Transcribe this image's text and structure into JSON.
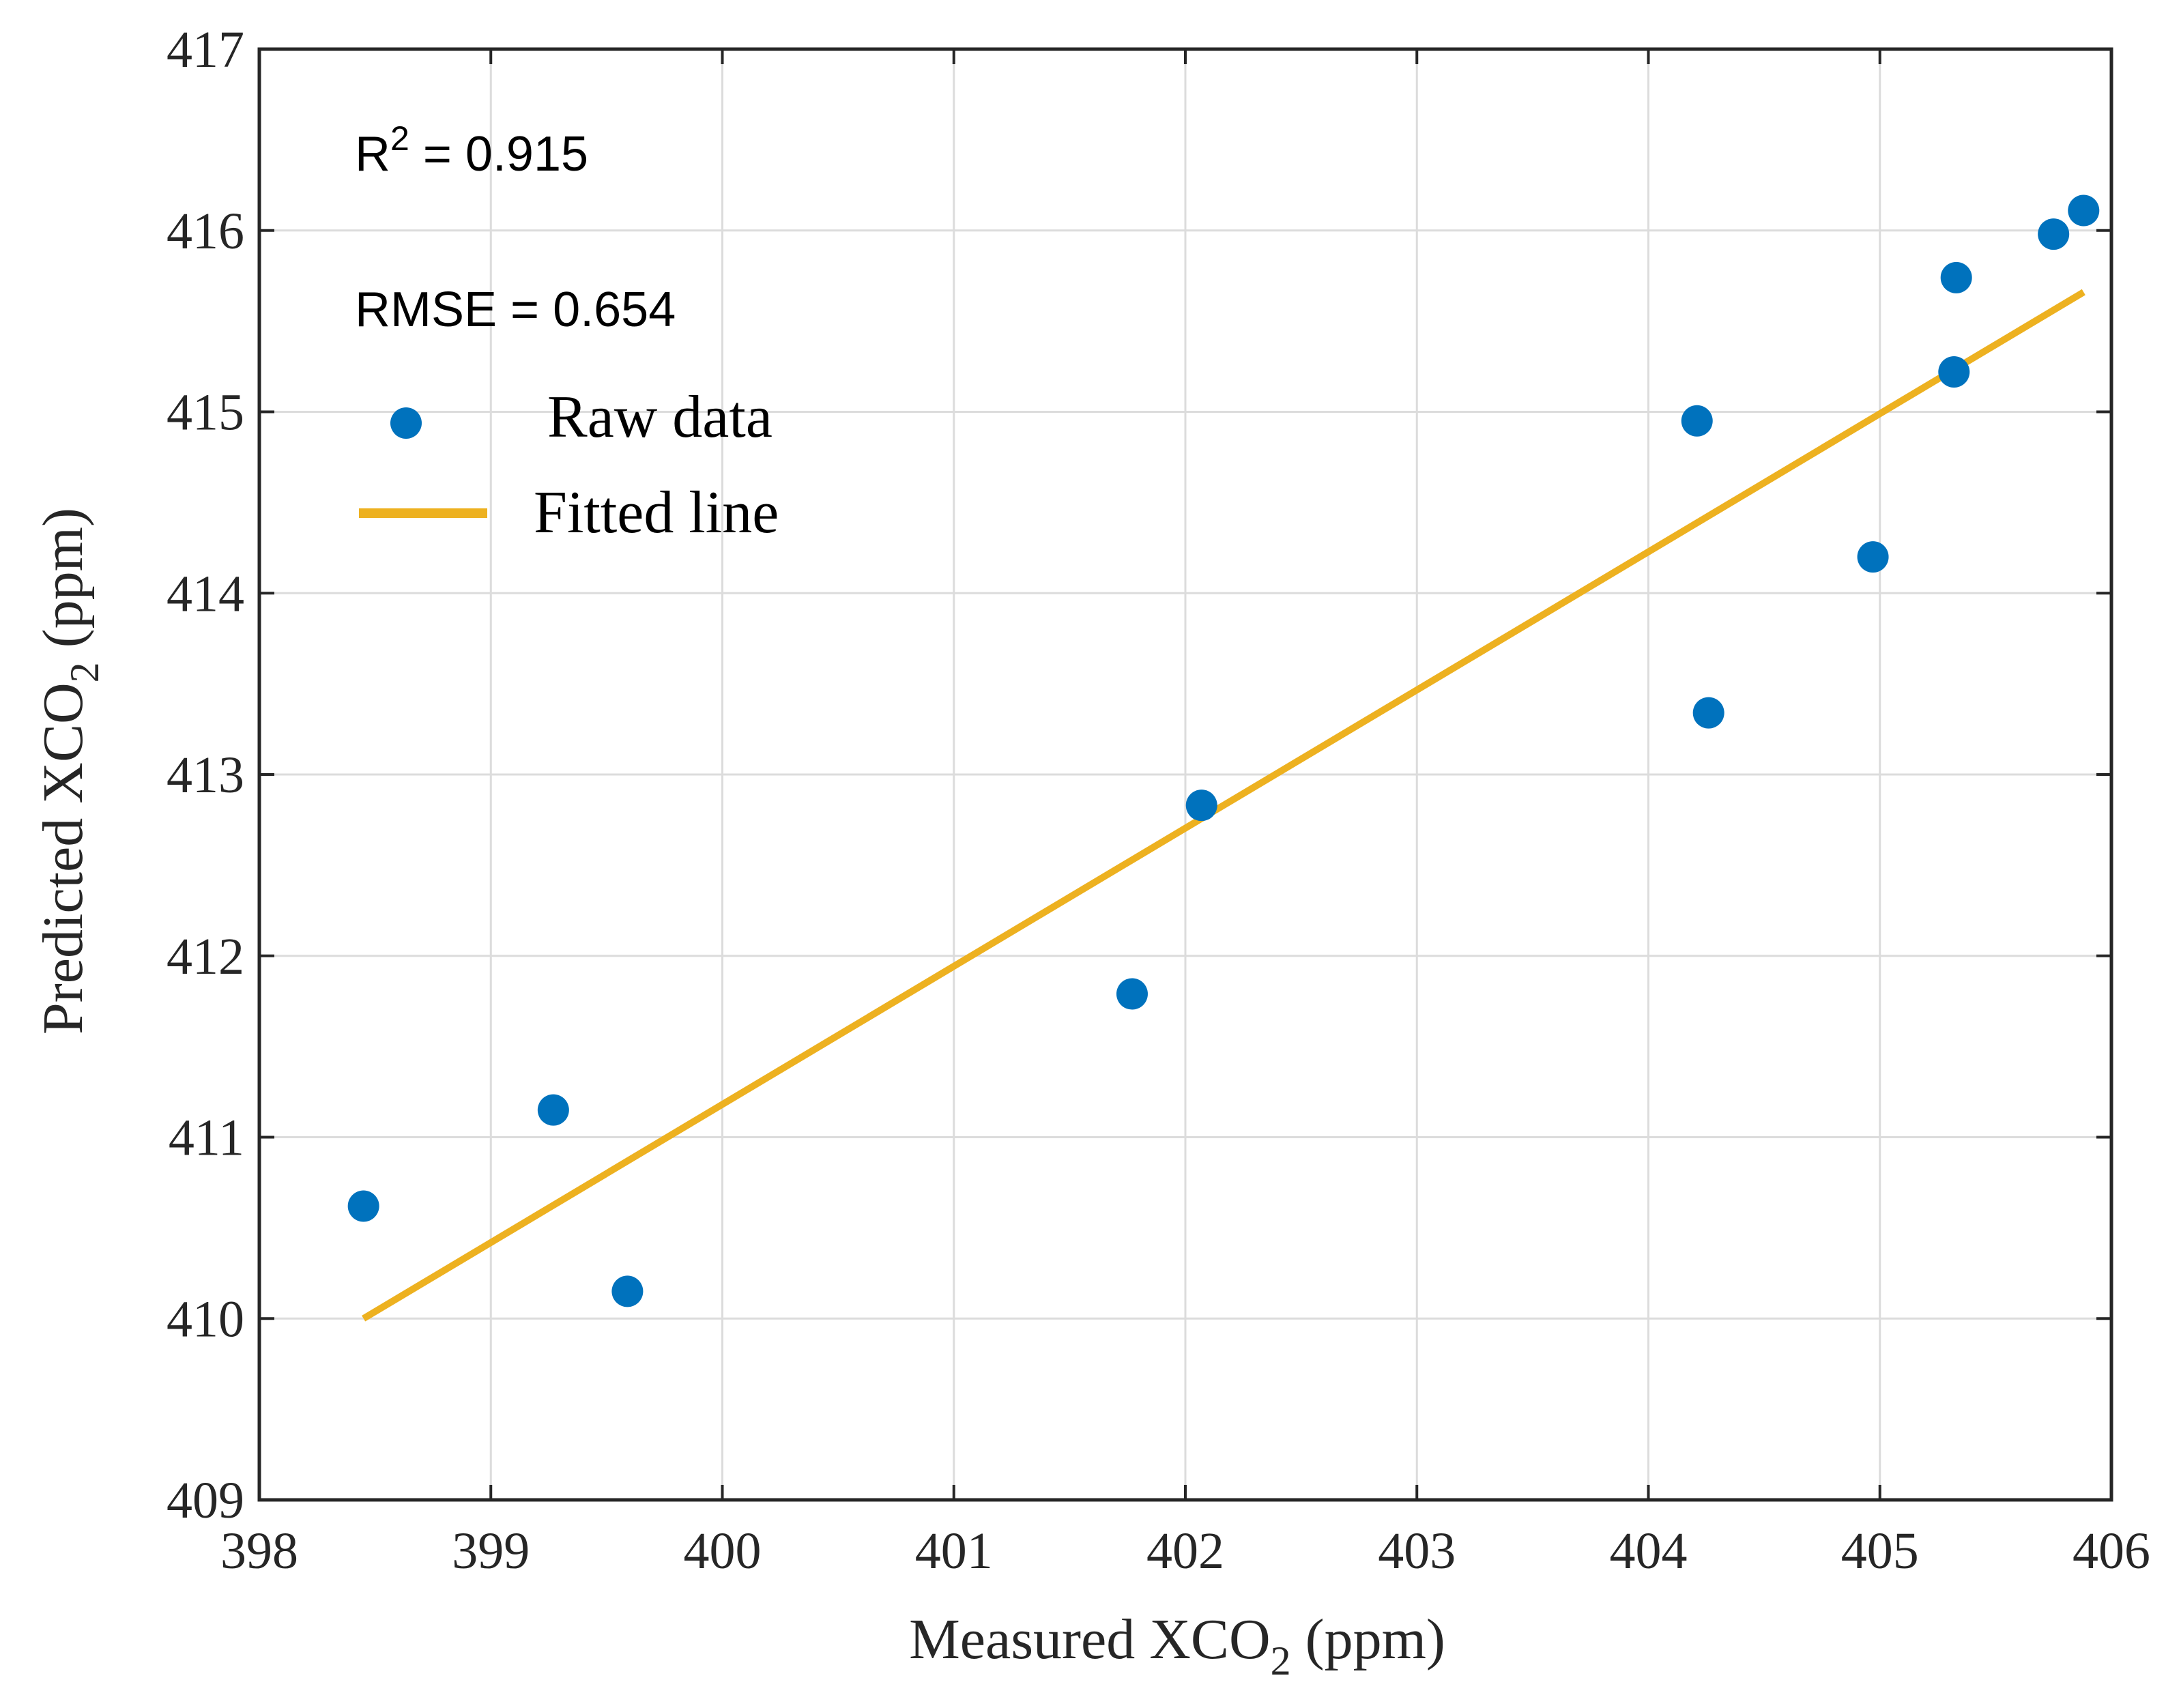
{
  "chart_data": {
    "type": "scatter",
    "title": "",
    "xlabel": {
      "main": "Measured XCO",
      "sub": "2",
      "units": " (ppm)"
    },
    "ylabel": {
      "main": "Predicted XCO",
      "sub": "2",
      "units": " (ppm)"
    },
    "xlim": [
      398,
      406
    ],
    "ylim": [
      409,
      417
    ],
    "x_ticks": [
      "398",
      "399",
      "400",
      "401",
      "402",
      "403",
      "404",
      "405",
      "406"
    ],
    "y_ticks": [
      "409",
      "410",
      "411",
      "412",
      "413",
      "414",
      "415",
      "416",
      "417"
    ],
    "grid": true,
    "series": [
      {
        "name": "Raw data",
        "kind": "scatter",
        "color": "#0072BD",
        "x": [
          398.45,
          399.27,
          399.59,
          401.77,
          402.07,
          404.21,
          404.26,
          404.97,
          405.32,
          405.33,
          405.75,
          405.88
        ],
        "y": [
          410.62,
          411.15,
          410.15,
          411.79,
          412.83,
          414.95,
          413.34,
          414.2,
          415.22,
          415.74,
          415.98,
          416.11
        ]
      },
      {
        "name": "Fitted line",
        "kind": "line",
        "color": "#EDB120",
        "x": [
          398.45,
          405.88
        ],
        "y": [
          410.0,
          415.66
        ]
      }
    ],
    "annotations": {
      "r2_prefix": "R",
      "r2_sup": "2",
      "r2_value": " = 0.915",
      "rmse": "RMSE = 0.654"
    },
    "legend": {
      "position": "top-left",
      "entries": [
        "Raw data",
        "Fitted line"
      ]
    }
  }
}
